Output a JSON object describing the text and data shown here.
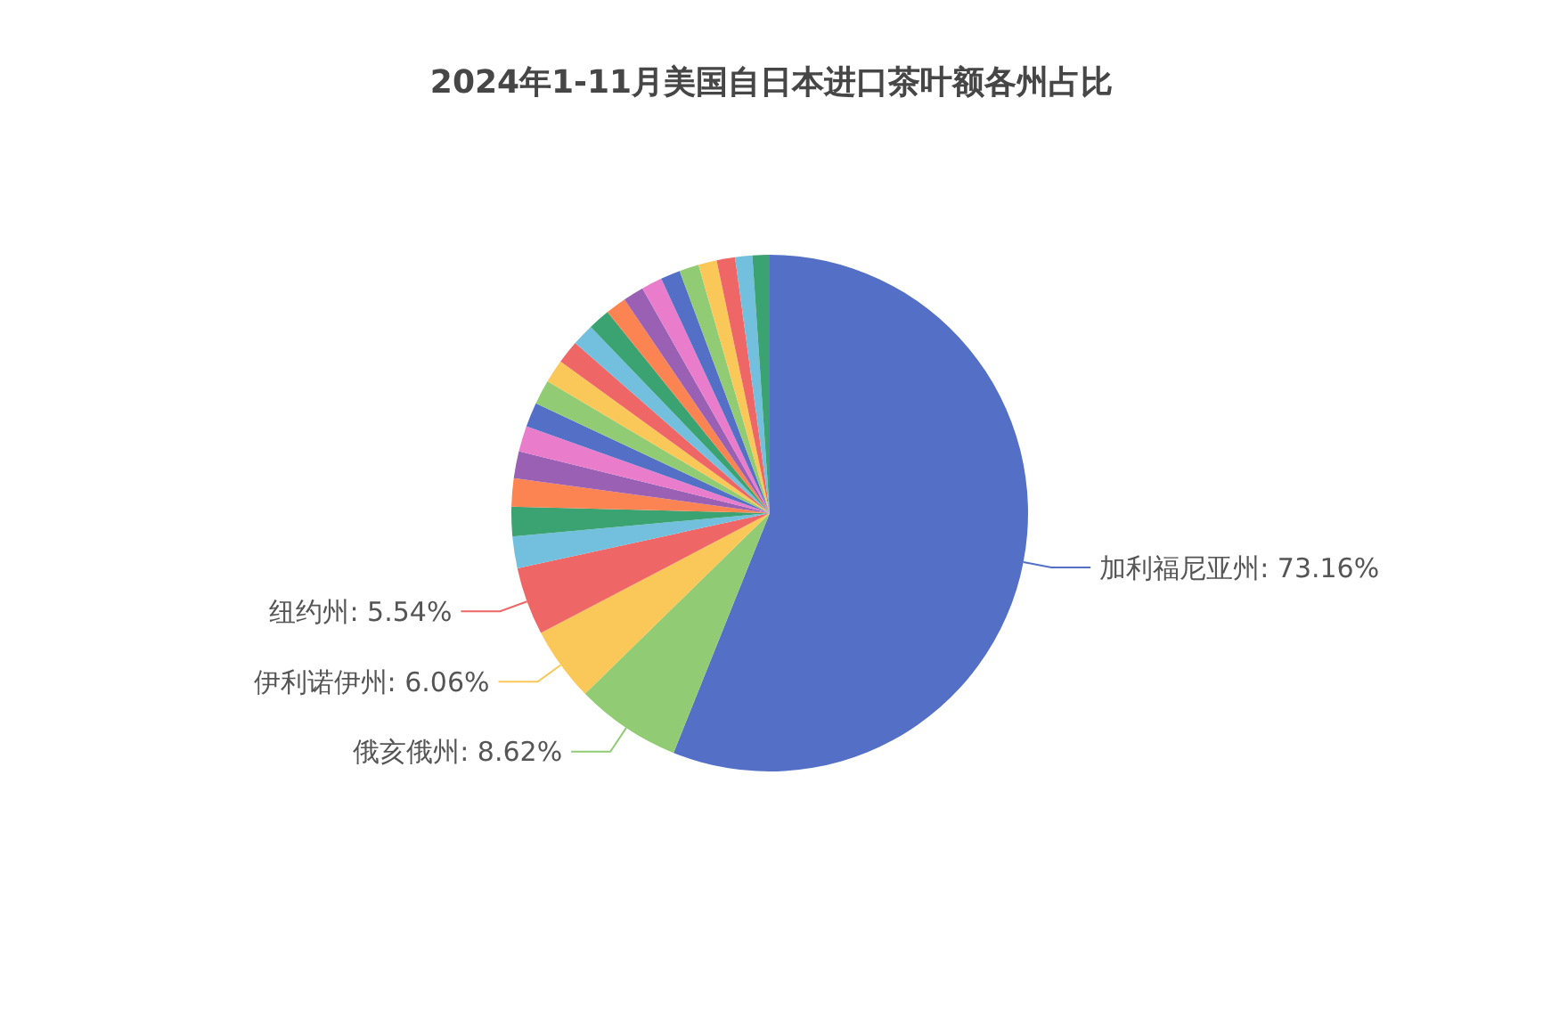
{
  "chart_data": {
    "type": "pie",
    "title": "2024年1-11月美国自日本进口茶叶额各州占比",
    "categories": [
      "加利福尼亚州",
      "俄亥俄州",
      "伊利诺伊州",
      "纽约州",
      null,
      null,
      null,
      null,
      null,
      null,
      null,
      null,
      null,
      null,
      null,
      null,
      null,
      null,
      null,
      null,
      null,
      null,
      null,
      null
    ],
    "values": [
      73.16,
      8.62,
      6.06,
      5.54,
      2.6,
      2.4,
      2.3,
      2.2,
      2.1,
      2.0,
      2.0,
      1.9,
      1.9,
      1.8,
      1.8,
      1.7,
      1.7,
      1.7,
      1.6,
      1.6,
      1.5,
      1.5,
      1.4,
      1.4
    ],
    "value_labels": [
      "73.16%",
      "8.62%",
      "6.06%",
      "5.54%",
      null,
      null,
      null,
      null,
      null,
      null,
      null,
      null,
      null,
      null,
      null,
      null,
      null,
      null,
      null,
      null,
      null,
      null,
      null,
      null
    ],
    "colors": [
      "#5470c6",
      "#91cc75",
      "#fac858",
      "#ee6666",
      "#73c0de",
      "#3ba272",
      "#fc8452",
      "#9a60b4",
      "#ea7ccc",
      "#5470c6",
      "#91cc75",
      "#fac858",
      "#ee6666",
      "#73c0de",
      "#3ba272",
      "#fc8452",
      "#9a60b4",
      "#ea7ccc",
      "#5470c6",
      "#91cc75",
      "#fac858",
      "#ee6666",
      "#73c0de",
      "#3ba272"
    ]
  }
}
